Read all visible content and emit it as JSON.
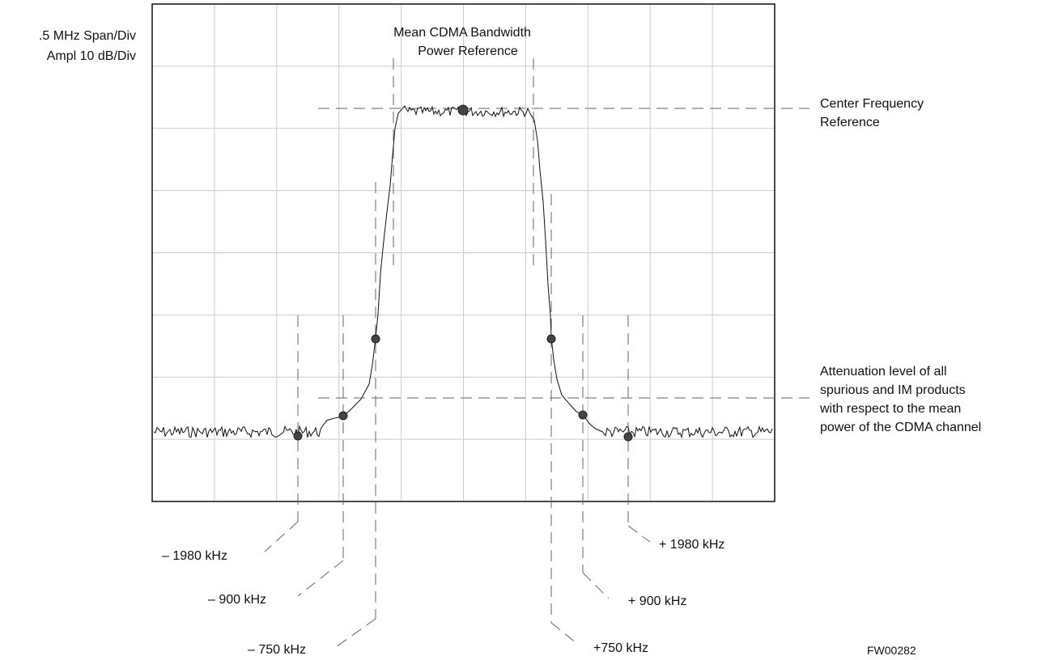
{
  "settings": {
    "span": ".5 MHz Span/Div",
    "ampl": "Ampl 10 dB/Div"
  },
  "annotations": {
    "mean_power_line1": "Mean CDMA Bandwidth",
    "mean_power_line2": "Power Reference",
    "center_freq_line1": "Center Frequency",
    "center_freq_line2": "Reference",
    "atten_line1": "Attenuation level of all",
    "atten_line2": "spurious and IM products",
    "atten_line3": "with respect to the mean",
    "atten_line4": "power of the CDMA channel"
  },
  "markers": {
    "neg_1980": "– 1980 kHz",
    "neg_900": "– 900 kHz",
    "neg_750": "– 750 kHz",
    "pos_1980": "+ 1980 kHz",
    "pos_900": "+ 900 kHz",
    "pos_750": "+750 kHz"
  },
  "figure_id": "FW00282",
  "colors": {
    "grid": "#cccccc",
    "trace": "#111111",
    "marker_dot": "#444444",
    "dashed": "#666666"
  }
}
